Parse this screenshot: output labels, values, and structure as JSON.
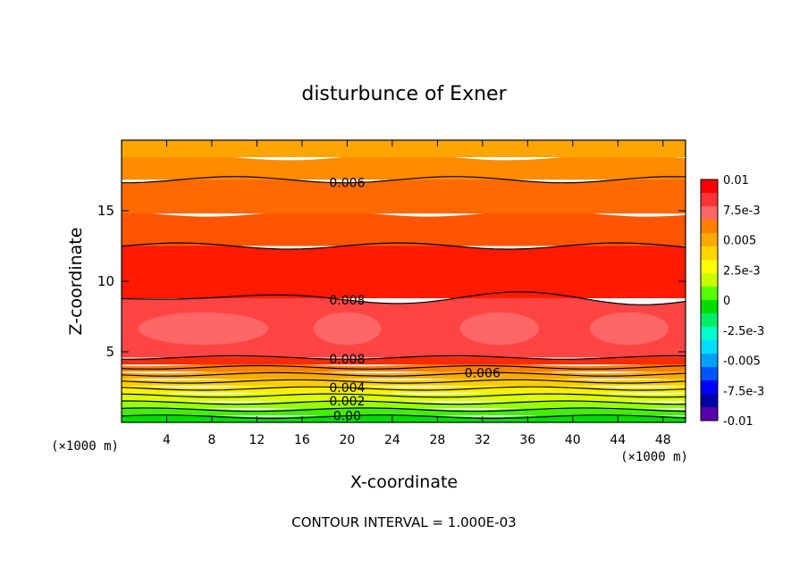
{
  "chart_data": {
    "type": "contour",
    "title": "disturbunce of Exner",
    "xlabel": "X-coordinate",
    "ylabel": "Z-coordinate",
    "x_unit": "(×1000 m)",
    "xlim": [
      0,
      50
    ],
    "ylim": [
      0,
      20
    ],
    "x_ticks": [
      4,
      8,
      12,
      16,
      20,
      24,
      28,
      32,
      36,
      40,
      44,
      48
    ],
    "y_ticks": [
      5,
      10,
      15
    ],
    "contour_interval": 0.001,
    "footer": "CONTOUR INTERVAL = 1.000E-03",
    "colorbar": {
      "ticks": [
        "0.01",
        "7.5e-3",
        "0.005",
        "2.5e-3",
        "0",
        "-2.5e-3",
        "-0.005",
        "-7.5e-3",
        "-0.01"
      ],
      "colors": [
        "#ff0000",
        "#ff3333",
        "#ff6666",
        "#ff7f00",
        "#ffaa00",
        "#ffd700",
        "#ffff00",
        "#c8ff00",
        "#55ff00",
        "#00dd00",
        "#00ee66",
        "#00ffcc",
        "#00ddff",
        "#00a0ff",
        "#0055ff",
        "#0000ff",
        "#0000aa",
        "#5500aa"
      ]
    },
    "bands": [
      {
        "z": 0.0,
        "value": -0.0005,
        "color": "#00dd00"
      },
      {
        "z": 0.5,
        "value": 0.0005,
        "color": "#44ee00"
      },
      {
        "z": 1.0,
        "value": 0.0015,
        "color": "#99ff00"
      },
      {
        "z": 1.5,
        "value": 0.0025,
        "color": "#ddff00"
      },
      {
        "z": 2.1,
        "value": 0.0035,
        "color": "#ffee00"
      },
      {
        "z": 2.6,
        "value": 0.0045,
        "color": "#ffcc00"
      },
      {
        "z": 3.1,
        "value": 0.0055,
        "color": "#ffaa00"
      },
      {
        "z": 3.6,
        "value": 0.0065,
        "color": "#ff7f00"
      },
      {
        "z": 4.1,
        "value": 0.0075,
        "color": "#ff2a00"
      },
      {
        "z": 4.6,
        "value": 0.0085,
        "color": "#ff4444"
      },
      {
        "z": 8.8,
        "value": 0.0075,
        "color": "#ff1a00"
      },
      {
        "z": 12.5,
        "value": 0.0065,
        "color": "#ff5500"
      },
      {
        "z": 14.8,
        "value": 0.0055,
        "color": "#ff6a00"
      },
      {
        "z": 17.2,
        "value": 0.0045,
        "color": "#ff8c00"
      },
      {
        "z": 18.8,
        "value": 0.0035,
        "color": "#ffa500"
      }
    ],
    "contour_lines": [
      {
        "z": 0.4,
        "label": "0.00",
        "label_x": 20
      },
      {
        "z": 0.9,
        "label": "",
        "label_x": null
      },
      {
        "z": 1.4,
        "label": "0.002",
        "label_x": 20
      },
      {
        "z": 1.9,
        "label": "",
        "label_x": null
      },
      {
        "z": 2.4,
        "label": "0.004",
        "label_x": 20
      },
      {
        "z": 2.9,
        "label": "",
        "label_x": null
      },
      {
        "z": 3.4,
        "label": "0.006",
        "label_x": 32
      },
      {
        "z": 3.9,
        "label": "",
        "label_x": null
      },
      {
        "z": 4.6,
        "label": "0.008",
        "label_x": 20
      },
      {
        "z": 8.8,
        "label": "0.008",
        "label_x": 20
      },
      {
        "z": 12.5,
        "label": "",
        "label_x": null
      },
      {
        "z": 17.2,
        "label": "0.006",
        "label_x": 20
      }
    ],
    "max_region": {
      "value": 0.0095,
      "color": "#ff6666",
      "z_range": [
        5.5,
        7.8
      ]
    }
  }
}
